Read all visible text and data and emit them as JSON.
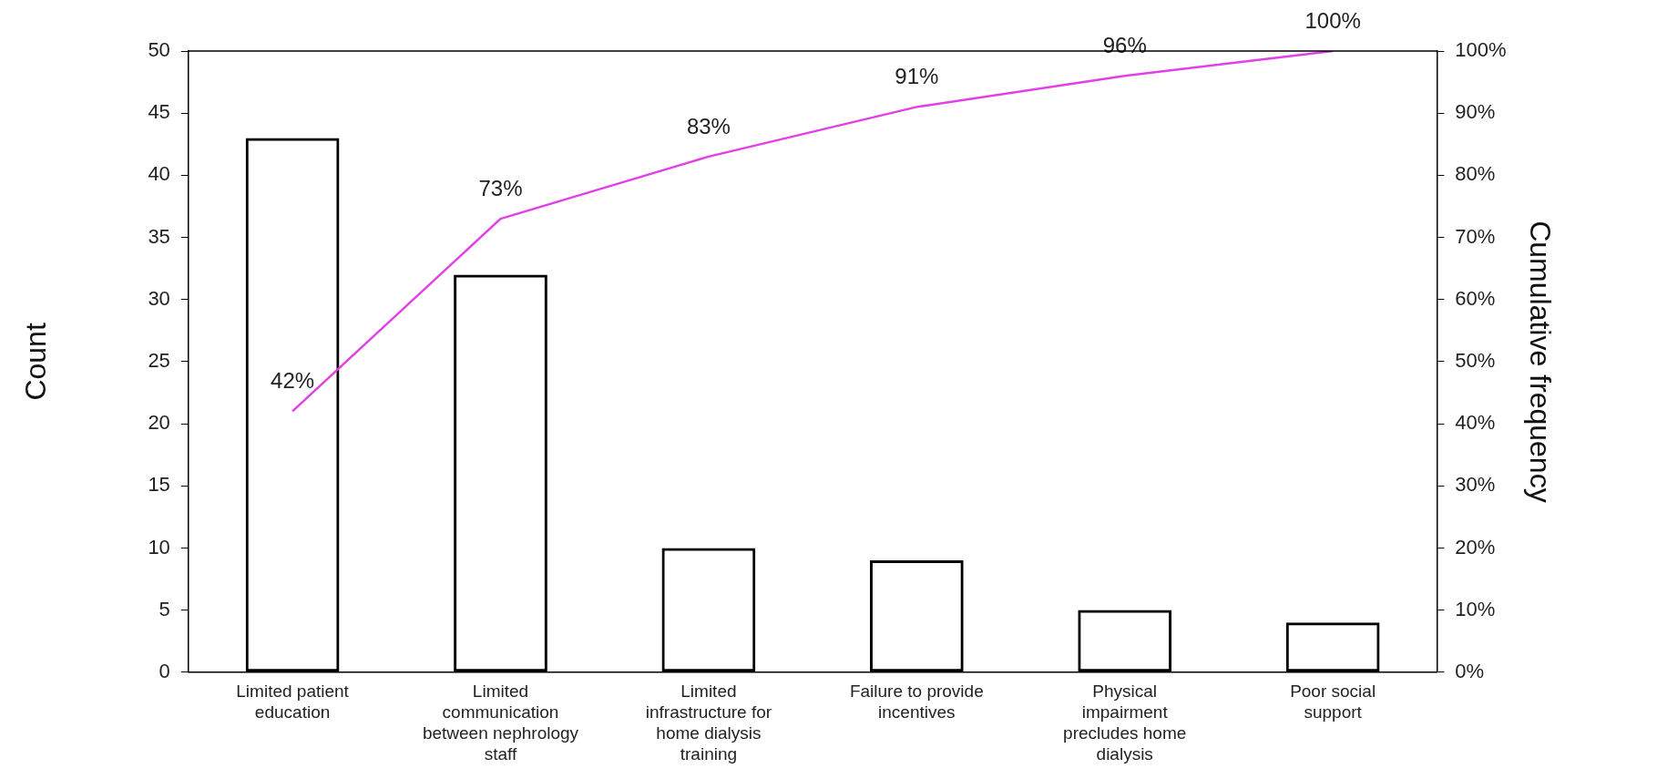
{
  "chart_data": {
    "type": "bar",
    "categories": [
      "Limited patient education",
      "Limited communication between nephrology staff",
      "Limited infrastructure for home dialysis training",
      "Failure to provide incentives",
      "Physical impairment precludes home dialysis",
      "Poor social support"
    ],
    "series": [
      {
        "color": "#000000",
        "values": [
          43,
          32,
          10,
          9,
          5,
          4
        ]
      },
      {
        "type": "line",
        "axis": "y2",
        "color": "#e040e6",
        "values": [
          42,
          73,
          83,
          91,
          96,
          100
        ],
        "value_labels": [
          "42%",
          "73%",
          "83%",
          "91%",
          "96%",
          "100%"
        ]
      }
    ],
    "ylabel": "Count",
    "y2label": "Cumulative frequency",
    "ylim": [
      0,
      50
    ],
    "yticks": [
      0,
      5,
      10,
      15,
      20,
      25,
      30,
      35,
      40,
      45,
      50
    ],
    "y2lim": [
      0,
      100
    ],
    "y2ticks": [
      {
        "value": 0,
        "label": "0%"
      },
      {
        "value": 10,
        "label": "10%"
      },
      {
        "value": 20,
        "label": "20%"
      },
      {
        "value": 30,
        "label": "30%"
      },
      {
        "value": 40,
        "label": "40%"
      },
      {
        "value": 50,
        "label": "50%"
      },
      {
        "value": 60,
        "label": "60%"
      },
      {
        "value": 70,
        "label": "70%"
      },
      {
        "value": 80,
        "label": "80%"
      },
      {
        "value": 90,
        "label": "90%"
      },
      {
        "value": 100,
        "label": "100%"
      }
    ],
    "grid": false,
    "legend": false,
    "marker": "none"
  }
}
